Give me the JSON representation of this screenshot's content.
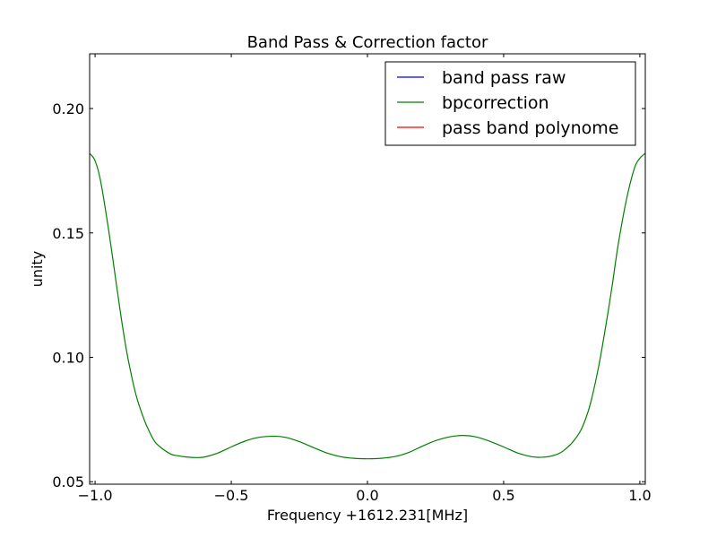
{
  "chart_data": {
    "type": "line",
    "title": "Band Pass & Correction factor",
    "xlabel": "Frequency +1612.231[MHz]",
    "ylabel": "unity",
    "xlim": [
      -1.02,
      1.02
    ],
    "ylim": [
      0.049,
      0.222
    ],
    "grid": false,
    "legend_position": "top-right",
    "x_ticks": [
      {
        "value": -1.0,
        "label": "−1.0"
      },
      {
        "value": -0.5,
        "label": "−0.5"
      },
      {
        "value": 0.0,
        "label": "0.0"
      },
      {
        "value": 0.5,
        "label": "0.5"
      },
      {
        "value": 1.0,
        "label": "1.0"
      }
    ],
    "y_ticks": [
      {
        "value": 0.05,
        "label": "0.05"
      },
      {
        "value": 0.1,
        "label": "0.10"
      },
      {
        "value": 0.15,
        "label": "0.15"
      },
      {
        "value": 0.2,
        "label": "0.20"
      }
    ],
    "series": [
      {
        "name": "band pass raw",
        "color": "#0000ff",
        "x": [],
        "y": []
      },
      {
        "name": "bpcorrection",
        "color": "#008000",
        "x": [
          -1.02,
          -1.0,
          -0.98,
          -0.95,
          -0.92,
          -0.9,
          -0.88,
          -0.85,
          -0.82,
          -0.8,
          -0.78,
          -0.75,
          -0.72,
          -0.7,
          -0.67,
          -0.65,
          -0.63,
          -0.6,
          -0.55,
          -0.5,
          -0.45,
          -0.4,
          -0.34,
          -0.3,
          -0.25,
          -0.2,
          -0.15,
          -0.1,
          -0.05,
          0.0,
          0.05,
          0.1,
          0.15,
          0.2,
          0.25,
          0.3,
          0.35,
          0.4,
          0.45,
          0.5,
          0.55,
          0.6,
          0.63,
          0.65,
          0.67,
          0.7,
          0.72,
          0.75,
          0.78,
          0.8,
          0.82,
          0.85,
          0.88,
          0.9,
          0.92,
          0.95,
          0.98,
          1.0,
          1.02
        ],
        "y": [
          0.182,
          0.179,
          0.171,
          0.151,
          0.128,
          0.113,
          0.1,
          0.085,
          0.075,
          0.07,
          0.066,
          0.063,
          0.061,
          0.0605,
          0.06,
          0.0598,
          0.0597,
          0.0599,
          0.0615,
          0.064,
          0.0663,
          0.0678,
          0.0683,
          0.0678,
          0.0661,
          0.0638,
          0.0616,
          0.0601,
          0.0594,
          0.0592,
          0.0594,
          0.0601,
          0.0617,
          0.0642,
          0.0665,
          0.068,
          0.0686,
          0.068,
          0.0662,
          0.064,
          0.0616,
          0.0601,
          0.0598,
          0.0599,
          0.0602,
          0.0612,
          0.0625,
          0.0655,
          0.07,
          0.075,
          0.082,
          0.097,
          0.116,
          0.13,
          0.145,
          0.163,
          0.176,
          0.18,
          0.182
        ]
      },
      {
        "name": "pass band polynome",
        "color": "#ff0000",
        "x": [],
        "y": []
      }
    ]
  }
}
